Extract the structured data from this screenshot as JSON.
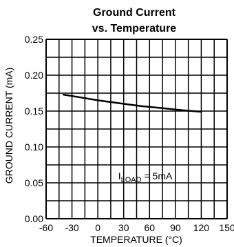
{
  "chart_data": {
    "type": "line",
    "title": "Ground Current",
    "subtitle": "vs. Temperature",
    "xlabel": "TEMPERATURE (°C)",
    "ylabel": "GROUND CURRENT (mA)",
    "xlim": [
      -60,
      150
    ],
    "ylim": [
      0,
      0.25
    ],
    "x_ticks": [
      -60,
      -30,
      0,
      30,
      60,
      90,
      120,
      150
    ],
    "x_tick_labels": [
      "-60",
      "-30",
      "0",
      "30",
      "60",
      "90",
      "120",
      "150"
    ],
    "y_ticks": [
      0,
      0.05,
      0.1,
      0.15,
      0.2,
      0.25
    ],
    "y_tick_labels": [
      "0.00",
      "0.05",
      "0.10",
      "0.15",
      "0.20",
      "0.25"
    ],
    "grid": true,
    "annotation": {
      "main": "I",
      "subscript": "LOAD",
      "rest": " = 5mA",
      "x": 55,
      "y": 0.055
    },
    "series": [
      {
        "x": [
          -40,
          -20,
          0,
          25,
          50,
          75,
          100,
          120
        ],
        "y": [
          0.173,
          0.169,
          0.165,
          0.161,
          0.157,
          0.154,
          0.151,
          0.149
        ]
      }
    ]
  }
}
